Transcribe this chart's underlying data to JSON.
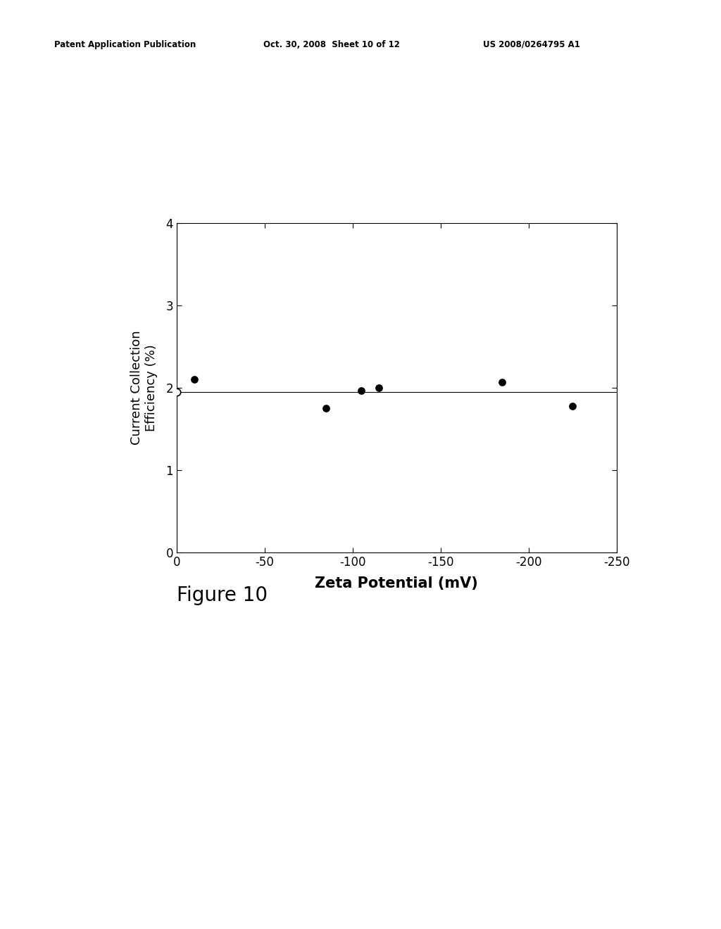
{
  "scatter_x_filled": [
    -10,
    -85,
    -105,
    -115,
    -185,
    -225
  ],
  "scatter_y_filled": [
    2.1,
    1.75,
    1.97,
    2.0,
    2.07,
    1.78
  ],
  "scatter_x_open": [
    0
  ],
  "scatter_y_open": [
    1.95
  ],
  "hline_y": 1.95,
  "xlim": [
    0,
    -250
  ],
  "ylim": [
    0,
    4
  ],
  "xticks": [
    0,
    -50,
    -100,
    -150,
    -200,
    -250
  ],
  "yticks": [
    0,
    1,
    2,
    3,
    4
  ],
  "xlabel": "Zeta Potential (mV)",
  "ylabel": "Current Collection\nEfficiency (%)",
  "figure_caption": "Figure 10",
  "header_left": "Patent Application Publication",
  "header_mid": "Oct. 30, 2008  Sheet 10 of 12",
  "header_right": "US 2008/0264795 A1",
  "bg_color": "#ffffff",
  "marker_size_filled": 60,
  "marker_size_open": 55,
  "hline_color": "#000000",
  "hline_lw": 0.8
}
